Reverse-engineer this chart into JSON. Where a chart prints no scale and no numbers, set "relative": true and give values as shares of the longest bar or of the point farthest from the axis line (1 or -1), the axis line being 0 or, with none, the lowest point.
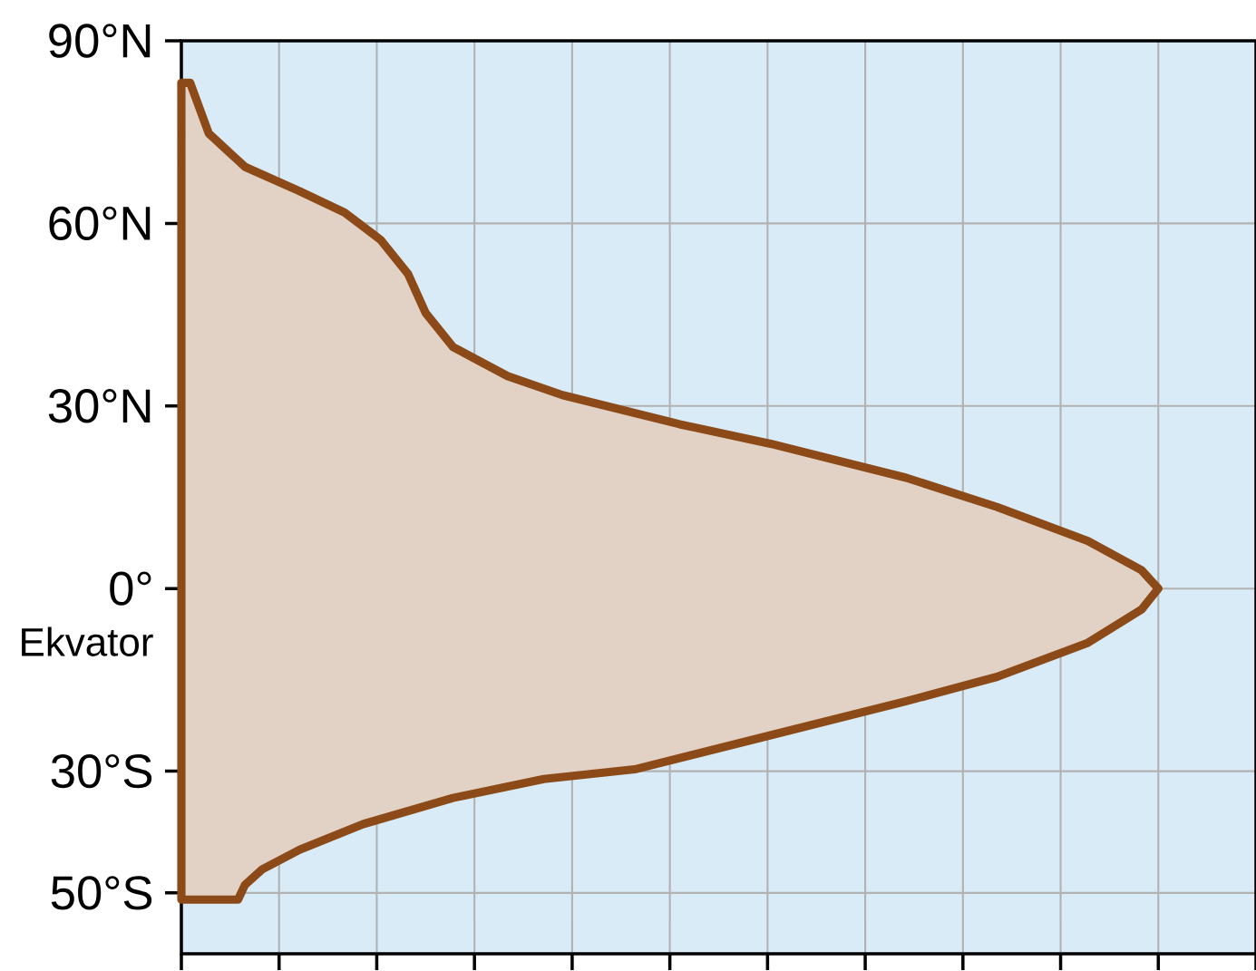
{
  "chart_data": {
    "type": "area",
    "orientation": "horizontal",
    "relative": true,
    "color": "#8b4a17",
    "grid": true,
    "x": [
      83.1,
      74.8,
      69.3,
      65.3,
      61.8,
      57.3,
      51.7,
      45.3,
      39.7,
      34.9,
      31.8,
      27.0,
      23.8,
      18.2,
      13.4,
      7.8,
      3.0,
      0,
      -3.4,
      -8.9,
      -14.5,
      -18.5,
      -24.1,
      -29.7,
      -31.3,
      -34.4,
      -38.7,
      -42.9,
      -46.1,
      -48.7,
      -51.1
    ],
    "values": [
      0.009,
      0.028,
      0.065,
      0.121,
      0.167,
      0.204,
      0.232,
      0.25,
      0.278,
      0.334,
      0.39,
      0.51,
      0.603,
      0.742,
      0.835,
      0.928,
      0.983,
      1.0,
      0.983,
      0.928,
      0.835,
      0.742,
      0.603,
      0.464,
      0.371,
      0.278,
      0.186,
      0.121,
      0.083,
      0.065,
      0.058
    ],
    "ylim": [
      -60,
      90
    ],
    "yticks": [
      {
        "value": 90,
        "label": "90°N"
      },
      {
        "value": 60,
        "label": "60°N"
      },
      {
        "value": 30,
        "label": "30°N"
      },
      {
        "value": 0,
        "label": "0°"
      },
      {
        "value": -30,
        "label": "30°S"
      },
      {
        "value": -50,
        "label": "50°S"
      }
    ],
    "annotations": [
      "Ekvator"
    ]
  }
}
